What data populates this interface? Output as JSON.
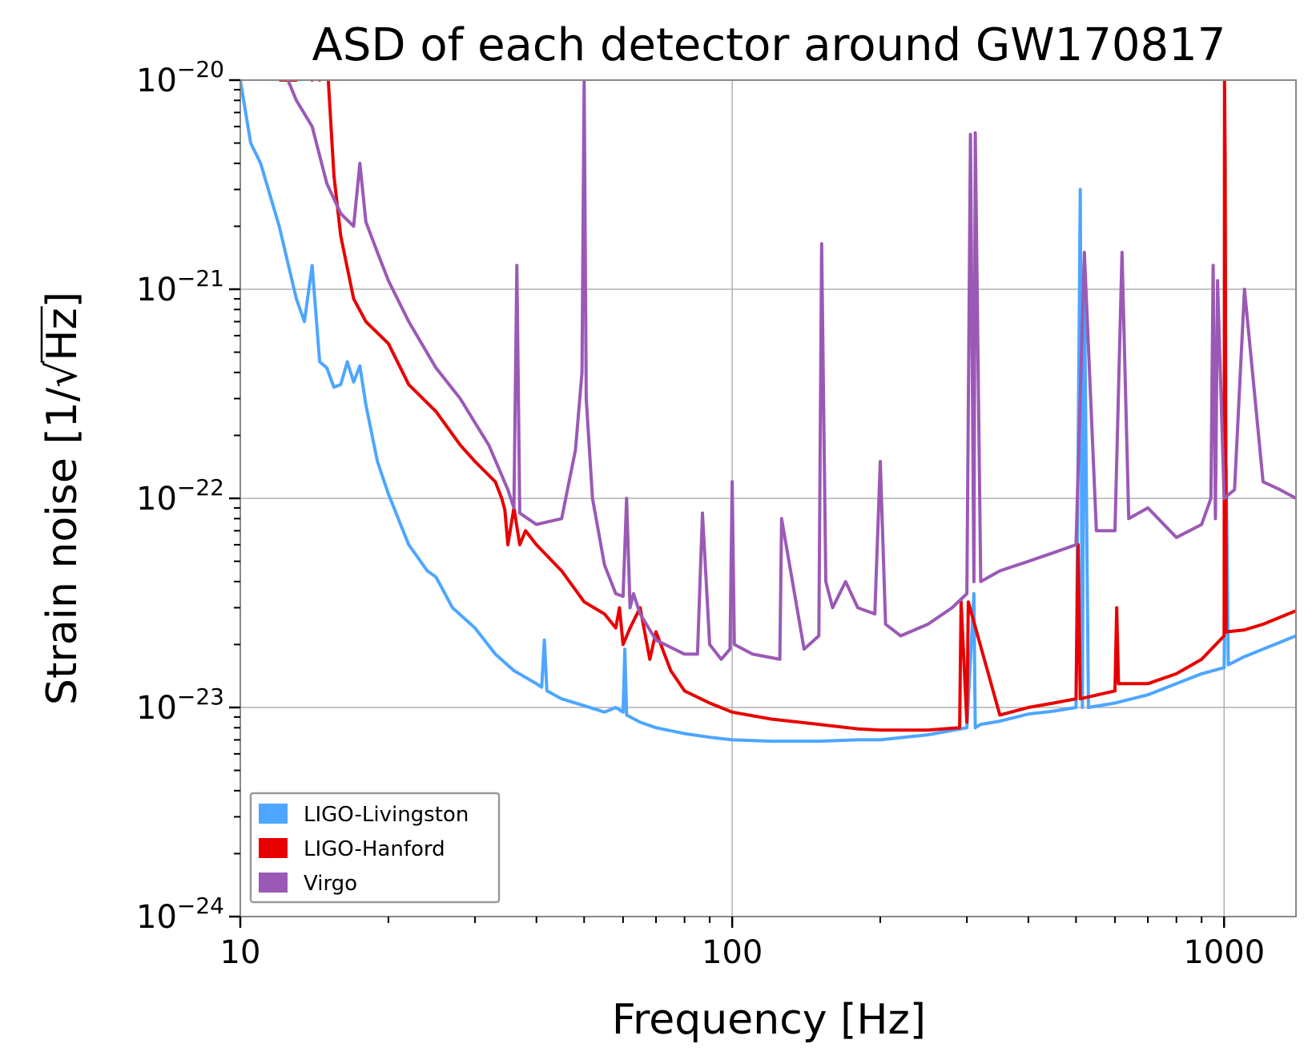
{
  "chart_data": {
    "type": "line",
    "title": "ASD of each detector around GW170817",
    "xlabel": "Frequency [Hz]",
    "ylabel_prefix": "Strain noise [1/",
    "ylabel_radical": "√",
    "ylabel_radicand": "Hz",
    "ylabel_suffix": "]",
    "xscale": "log",
    "yscale": "log",
    "xlim": [
      10,
      1400
    ],
    "ylim": [
      1e-24,
      1e-20
    ],
    "grid": true,
    "legend_position": "lower-left",
    "x_ticks": [
      {
        "value": 10,
        "label": "10"
      },
      {
        "value": 100,
        "label": "100"
      },
      {
        "value": 1000,
        "label": "1000"
      }
    ],
    "y_ticks": [
      {
        "value": 1e-24,
        "base": "10",
        "exp": "−24"
      },
      {
        "value": 1e-23,
        "base": "10",
        "exp": "−23"
      },
      {
        "value": 1e-22,
        "base": "10",
        "exp": "−22"
      },
      {
        "value": 1e-21,
        "base": "10",
        "exp": "−21"
      },
      {
        "value": 1e-20,
        "base": "10",
        "exp": "−20"
      }
    ],
    "series": [
      {
        "name": "LIGO-Livingston",
        "color": "#4da6ff",
        "x": [
          10,
          10.5,
          11,
          12,
          13,
          13.5,
          14,
          14.5,
          15,
          15.5,
          16,
          16.5,
          17,
          17.5,
          18,
          19,
          20,
          22,
          24,
          25,
          27,
          30,
          33,
          36,
          40,
          41,
          41.5,
          42,
          45,
          50,
          55,
          58,
          60,
          60.5,
          61,
          65,
          70,
          80,
          90,
          100,
          120,
          150,
          180,
          200,
          250,
          300,
          310,
          312,
          320,
          350,
          400,
          450,
          500,
          510,
          515,
          520,
          530,
          600,
          700,
          800,
          900,
          1000,
          1010,
          1020,
          1100,
          1200,
          1300,
          1400
        ],
        "y": [
          1e-20,
          5e-21,
          4e-21,
          2e-21,
          9e-22,
          7e-22,
          1.3e-21,
          4.5e-22,
          4.2e-22,
          3.4e-22,
          3.5e-22,
          4.5e-22,
          3.6e-22,
          4.3e-22,
          2.8e-22,
          1.5e-22,
          1.05e-22,
          6e-23,
          4.5e-23,
          4.2e-23,
          3e-23,
          2.4e-23,
          1.8e-23,
          1.5e-23,
          1.3e-23,
          1.25e-23,
          2.1e-23,
          1.2e-23,
          1.1e-23,
          1.02e-23,
          9.5e-24,
          1e-23,
          9.5e-24,
          1.9e-23,
          9.2e-24,
          8.5e-24,
          8e-24,
          7.5e-24,
          7.2e-24,
          7e-24,
          6.9e-24,
          6.9e-24,
          7e-24,
          7e-24,
          7.4e-24,
          8e-24,
          3.5e-23,
          8e-24,
          8.3e-24,
          8.6e-24,
          9.3e-24,
          9.6e-24,
          1e-23,
          3e-21,
          1e-23,
          1.1e-21,
          1e-23,
          1.05e-23,
          1.15e-23,
          1.3e-23,
          1.45e-23,
          1.55e-23,
          1.4e-22,
          1.6e-23,
          1.75e-23,
          1.9e-23,
          2.05e-23,
          2.2e-23
        ]
      },
      {
        "name": "LIGO-Hanford",
        "color": "#e80000",
        "x": [
          12,
          13,
          13.5,
          14,
          14.2,
          14.5,
          15,
          15.5,
          16,
          17,
          18,
          20,
          22,
          25,
          28,
          30,
          33,
          34,
          34.5,
          35,
          36,
          37,
          38,
          40,
          45,
          50,
          55,
          58,
          59,
          60,
          62,
          65,
          68,
          70,
          75,
          80,
          90,
          100,
          120,
          150,
          180,
          200,
          250,
          290,
          292,
          300,
          302,
          350,
          400,
          450,
          500,
          505,
          510,
          600,
          605,
          610,
          700,
          800,
          900,
          1000,
          1002,
          1005,
          1010,
          1100,
          1200,
          1300,
          1400
        ],
        "y": [
          1e-20,
          1e-20,
          1.6e-20,
          1e-20,
          1.2e-20,
          1e-20,
          1.3e-20,
          3.5e-21,
          1.8e-21,
          9e-22,
          7e-22,
          5.5e-22,
          3.5e-22,
          2.6e-22,
          1.8e-22,
          1.5e-22,
          1.2e-22,
          1e-22,
          8.8e-23,
          6e-23,
          9e-23,
          6e-23,
          7e-23,
          6e-23,
          4.5e-23,
          3.2e-23,
          2.8e-23,
          2.4e-23,
          3e-23,
          2e-23,
          2.4e-23,
          3e-23,
          1.7e-23,
          2.3e-23,
          1.5e-23,
          1.2e-23,
          1.05e-23,
          9.5e-24,
          8.8e-24,
          8.3e-24,
          7.9e-24,
          7.8e-24,
          7.8e-24,
          8e-24,
          3.2e-23,
          8.5e-24,
          3.2e-23,
          9.2e-24,
          1e-23,
          1.05e-23,
          1.1e-23,
          6e-23,
          1.1e-23,
          1.2e-23,
          3e-23,
          1.3e-23,
          1.3e-23,
          1.45e-23,
          1.7e-23,
          2.2e-23,
          1e-20,
          4e-21,
          2.3e-23,
          2.35e-23,
          2.5e-23,
          2.7e-23,
          2.9e-23
        ]
      },
      {
        "name": "Virgo",
        "color": "#9b59b6",
        "x": [
          12.5,
          13,
          14,
          15,
          16,
          17,
          17.5,
          18,
          19,
          20,
          22,
          25,
          28,
          30,
          32,
          35,
          36,
          36.5,
          37,
          40,
          45,
          48,
          49.5,
          50,
          50.5,
          52,
          55,
          58,
          60,
          61,
          62,
          63,
          65,
          70,
          80,
          85,
          87,
          90,
          95,
          99,
          100,
          101,
          110,
          125,
          126,
          140,
          150,
          152,
          155,
          160,
          170,
          180,
          195,
          200,
          205,
          220,
          250,
          280,
          300,
          305,
          310,
          312,
          320,
          350,
          400,
          450,
          500,
          520,
          550,
          600,
          620,
          640,
          700,
          800,
          900,
          940,
          950,
          960,
          970,
          1000,
          1050,
          1100,
          1200,
          1300,
          1400
        ],
        "y": [
          1e-20,
          8e-21,
          6e-21,
          3.2e-21,
          2.3e-21,
          2e-21,
          4e-21,
          2.1e-21,
          1.5e-21,
          1.1e-21,
          7e-22,
          4.2e-22,
          3e-22,
          2.3e-22,
          1.8e-22,
          1.1e-22,
          9e-23,
          1.3e-21,
          8.5e-23,
          7.5e-23,
          8e-23,
          1.7e-22,
          4e-22,
          1e-20,
          3e-22,
          1e-22,
          4.8e-23,
          3.5e-23,
          3.4e-23,
          1e-22,
          3e-23,
          3.5e-23,
          2.8e-23,
          2.1e-23,
          1.8e-23,
          1.8e-23,
          8.5e-23,
          2e-23,
          1.7e-23,
          1.9e-23,
          1.2e-22,
          2e-23,
          1.8e-23,
          1.7e-23,
          8e-23,
          1.9e-23,
          2.2e-23,
          1.65e-21,
          4e-23,
          3e-23,
          4e-23,
          3e-23,
          2.8e-23,
          1.5e-22,
          2.5e-23,
          2.2e-23,
          2.5e-23,
          3e-23,
          3.5e-23,
          5.5e-21,
          4e-23,
          5.6e-21,
          4e-23,
          4.5e-23,
          5e-23,
          5.5e-23,
          6e-23,
          1.5e-21,
          7e-23,
          7e-23,
          1.5e-21,
          8e-23,
          9e-23,
          6.5e-23,
          7.5e-23,
          1e-22,
          1.3e-21,
          8e-23,
          1.1e-21,
          1e-22,
          1.1e-22,
          1e-21,
          1.2e-22,
          1.1e-22,
          1e-22
        ]
      }
    ]
  }
}
